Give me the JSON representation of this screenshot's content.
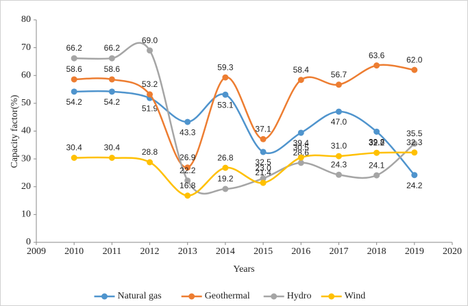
{
  "chart_data": {
    "type": "line",
    "x_label": "Years",
    "y_label": "Capacity factor(%)",
    "x": [
      2010,
      2011,
      2012,
      2013,
      2014,
      2015,
      2016,
      2017,
      2018,
      2019
    ],
    "xlim": [
      2009,
      2020
    ],
    "xticks": [
      2009,
      2010,
      2011,
      2012,
      2013,
      2014,
      2015,
      2016,
      2017,
      2018,
      2019,
      2020
    ],
    "ylim": [
      0,
      80
    ],
    "yticks": [
      0,
      10,
      20,
      30,
      40,
      50,
      60,
      70,
      80
    ],
    "grid": false,
    "legend": "bottom",
    "series": [
      {
        "name": "Natural gas",
        "color": "#4f94cd",
        "values": [
          54.2,
          54.2,
          51.9,
          43.3,
          53.1,
          32.5,
          39.4,
          47.0,
          39.8,
          24.2
        ],
        "value_labels": [
          "54.2",
          "54.2",
          "51.9",
          "43.3",
          "53.1",
          "32.5",
          "39.4",
          "47.0",
          "39.8",
          "24.2"
        ]
      },
      {
        "name": "Geothermal",
        "color": "#ed7d31",
        "values": [
          58.6,
          58.6,
          53.2,
          26.9,
          59.3,
          37.1,
          58.4,
          56.7,
          63.6,
          62.0
        ],
        "value_labels": [
          "58.6",
          "58.6",
          "53.2",
          "26.9",
          "59.3",
          "37.1",
          "58.4",
          "56.7",
          "63.6",
          "62.0"
        ]
      },
      {
        "name": "Hydro",
        "color": "#a5a5a5",
        "values": [
          66.2,
          66.2,
          69.0,
          22.2,
          19.2,
          23.0,
          28.6,
          24.3,
          24.1,
          35.5
        ],
        "value_labels": [
          "66.2",
          "66.2",
          "69.0",
          "22.2",
          "19.2",
          "23.0",
          "28.6",
          "24.3",
          "24.1",
          "35.5"
        ]
      },
      {
        "name": "Wind",
        "color": "#ffc000",
        "values": [
          30.4,
          30.4,
          28.8,
          16.8,
          26.8,
          21.4,
          30.5,
          31.0,
          32.2,
          32.3
        ],
        "value_labels": [
          "30.4",
          "30.4",
          "28.8",
          "16.8",
          "26.8",
          "21.4",
          "30.5",
          "31.0",
          "32.2",
          "32.3"
        ]
      }
    ]
  }
}
